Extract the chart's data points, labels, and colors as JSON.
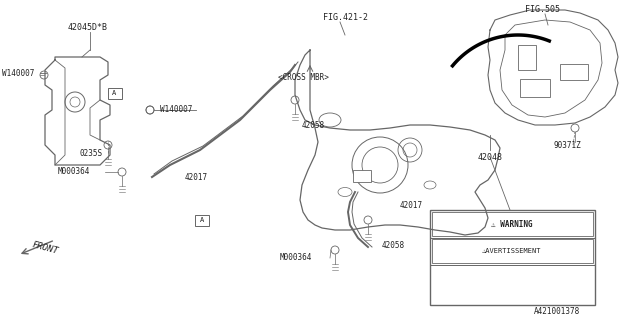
{
  "bg_color": "#ffffff",
  "line_color": "#666666",
  "text_color": "#222222",
  "diagram_id": "A421001378",
  "labels": {
    "fig421": "FIG.421-2",
    "fig505": "FIG.505",
    "cross_mbr": "<CROSS MBR>",
    "front": "FRONT",
    "part_42045": "42045D*B",
    "part_w140007_top": "W140007",
    "part_w140007_left": "W140007",
    "part_0235s": "0235S",
    "part_m000364_left": "M000364",
    "part_42017_left": "42017",
    "part_42058_mid": "42058",
    "part_42017_right": "42017",
    "part_42058_right": "42058",
    "part_m000364_bot": "M000364",
    "part_42048": "42048",
    "part_90371z": "90371Z",
    "warning": "WARNING",
    "avertissement": "AVERTISSEMENT"
  }
}
